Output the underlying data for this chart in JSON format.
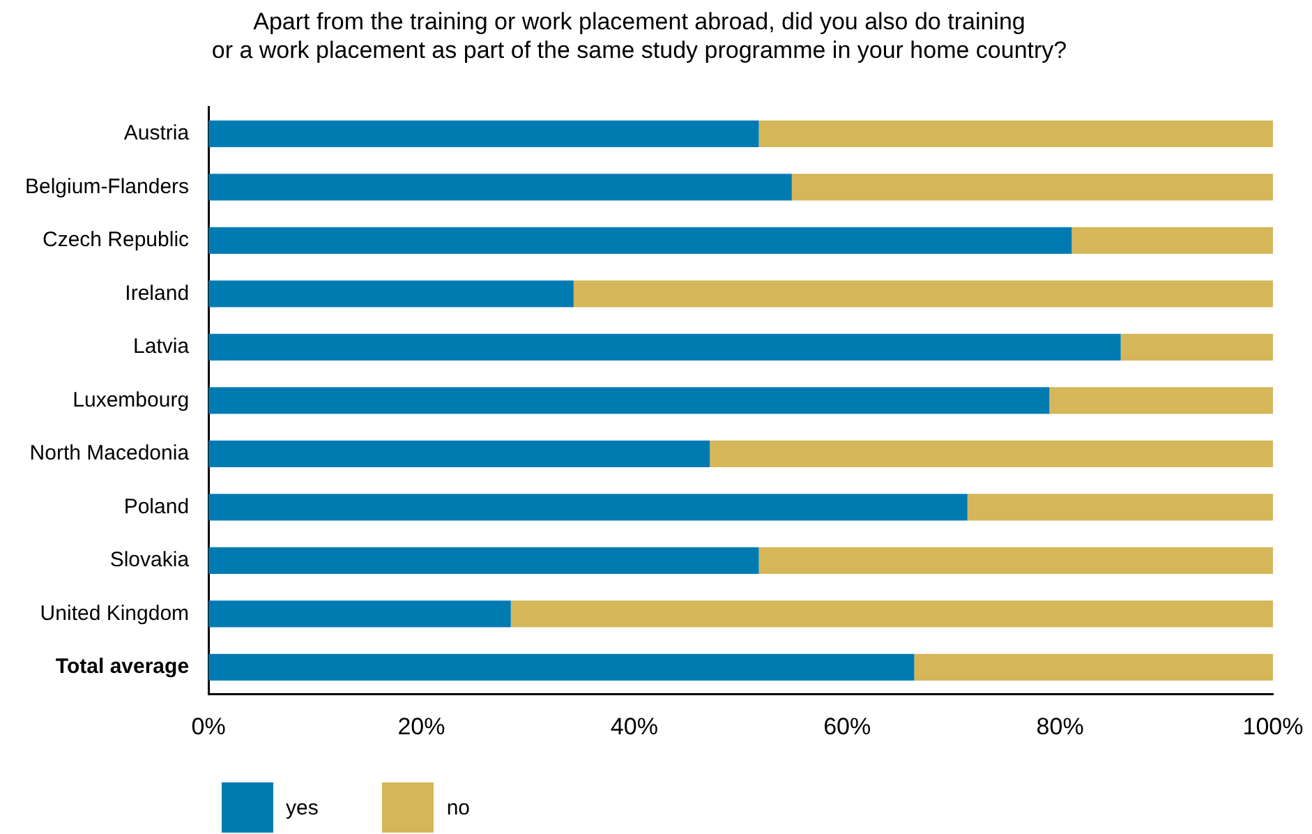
{
  "chart_data": {
    "type": "bar",
    "orientation": "horizontal",
    "stacked": true,
    "title": "Apart from the training or work placement abroad, did you also do training\nor a work placement as part of the same study programme in your home country?",
    "categories": [
      "Austria",
      "Belgium-Flanders",
      "Czech Republic",
      "Ireland",
      "Latvia",
      "Luxembourg",
      "North Macedonia",
      "Poland",
      "Slovakia",
      "United Kingdom",
      "Total average"
    ],
    "series": [
      {
        "name": "yes",
        "color": "#007bb2",
        "values": [
          51.7,
          54.8,
          81.1,
          34.3,
          85.7,
          79.0,
          47.1,
          71.3,
          51.7,
          28.4,
          66.3
        ]
      },
      {
        "name": "no",
        "color": "#d5b658",
        "values": [
          48.3,
          45.2,
          18.9,
          65.7,
          14.3,
          21.0,
          52.9,
          28.7,
          48.3,
          71.6,
          33.7
        ]
      }
    ],
    "xlim": [
      0,
      100
    ],
    "xticks": [
      {
        "value": 0,
        "label": "0%"
      },
      {
        "value": 20,
        "label": "20%"
      },
      {
        "value": 40,
        "label": "40%"
      },
      {
        "value": 60,
        "label": "60%"
      },
      {
        "value": 80,
        "label": "80%"
      },
      {
        "value": 100,
        "label": "100%"
      }
    ],
    "grid": false,
    "legend": "bottom left"
  }
}
